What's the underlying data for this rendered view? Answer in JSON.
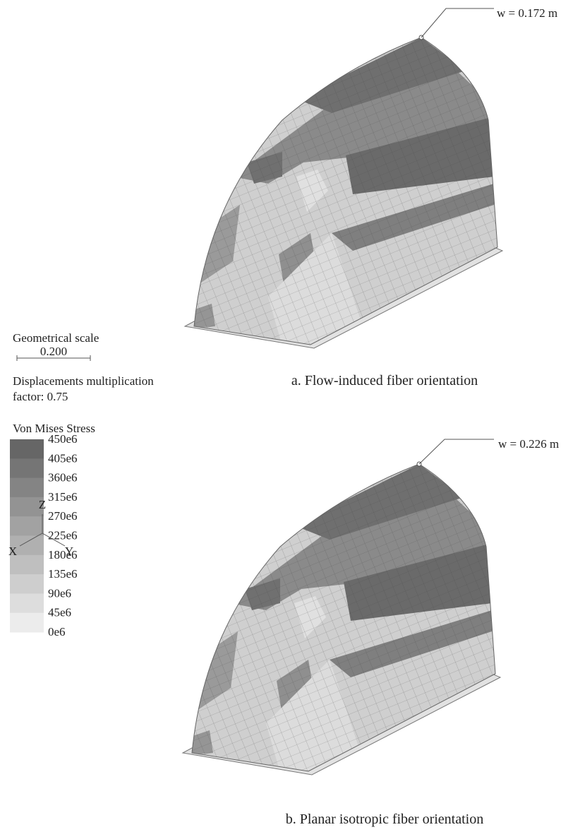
{
  "figure_a": {
    "annotation": "w = 0.172 m",
    "caption": "a. Flow-induced fiber orientation"
  },
  "figure_b": {
    "annotation": "w = 0.226 m",
    "caption": "b. Planar isotropic fiber orientation"
  },
  "scale": {
    "title": "Geometrical scale",
    "value": "0.200"
  },
  "displacement": {
    "lines": [
      "Displacements multiplication",
      "factor: 0.75"
    ]
  },
  "legend": {
    "title": "Von Mises Stress",
    "labels": [
      "450e6",
      "405e6",
      "360e6",
      "315e6",
      "270e6",
      "225e6",
      "180e6",
      "135e6",
      "90e6",
      "45e6",
      "0e6"
    ]
  },
  "axes": {
    "z": "Z",
    "x": "X",
    "y": "Y"
  }
}
